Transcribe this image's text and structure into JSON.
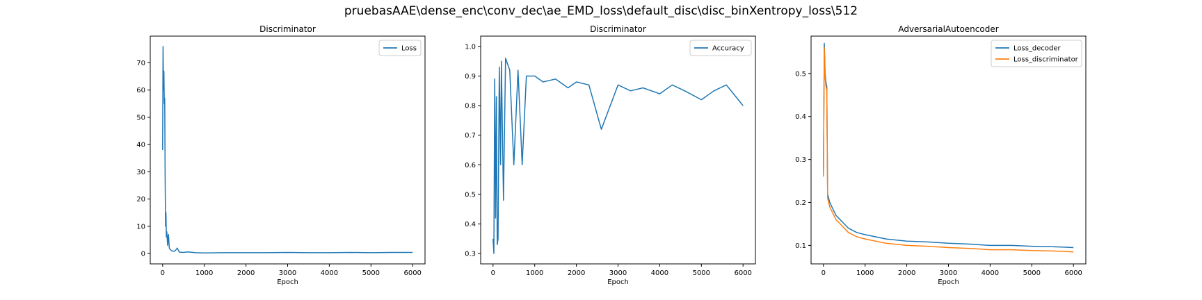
{
  "suptitle": "pruebasAAE\\dense_enc\\conv_dec\\ae_EMD_loss\\default_disc\\disc_binXentropy_loss\\512",
  "chart_data": [
    {
      "type": "line",
      "title": "Discriminator",
      "xlabel": "Epoch",
      "ylabel": "",
      "xlim": [
        -297,
        6297
      ],
      "ylim": [
        -3.8,
        79.8
      ],
      "xticks": [
        0,
        1000,
        2000,
        3000,
        4000,
        5000,
        6000
      ],
      "yticks": [
        0,
        10,
        20,
        30,
        40,
        50,
        60,
        70
      ],
      "legend_position": "top-right",
      "grid": false,
      "series": [
        {
          "name": "Loss",
          "color": "#1f77b4",
          "x": [
            0,
            10,
            20,
            30,
            40,
            50,
            60,
            70,
            80,
            90,
            100,
            120,
            140,
            160,
            180,
            200,
            250,
            300,
            350,
            400,
            500,
            600,
            800,
            1000,
            1500,
            2000,
            2500,
            3000,
            3500,
            4000,
            4500,
            5000,
            5500,
            6000
          ],
          "values": [
            38,
            76,
            60,
            67,
            55,
            57,
            28,
            10,
            15,
            6,
            8,
            3,
            7,
            2,
            1.5,
            1.2,
            0.8,
            1,
            2,
            0.5,
            0.4,
            0.6,
            0.3,
            0.2,
            0.3,
            0.3,
            0.3,
            0.4,
            0.3,
            0.3,
            0.4,
            0.3,
            0.4,
            0.4
          ]
        }
      ]
    },
    {
      "type": "line",
      "title": "Discriminator",
      "xlabel": "Epoch",
      "ylabel": "",
      "xlim": [
        -297,
        6297
      ],
      "ylim": [
        0.265,
        1.035
      ],
      "xticks": [
        0,
        1000,
        2000,
        3000,
        4000,
        5000,
        6000
      ],
      "yticks": [
        0.3,
        0.4,
        0.5,
        0.6,
        0.7,
        0.8,
        0.9,
        1.0
      ],
      "legend_position": "top-right",
      "grid": false,
      "series": [
        {
          "name": "Accuracy",
          "color": "#1f77b4",
          "x": [
            0,
            20,
            40,
            60,
            80,
            100,
            120,
            150,
            180,
            200,
            250,
            300,
            400,
            500,
            600,
            700,
            800,
            1000,
            1200,
            1500,
            1800,
            2000,
            2300,
            2600,
            3000,
            3300,
            3600,
            4000,
            4300,
            4600,
            5000,
            5300,
            5600,
            6000
          ],
          "values": [
            0.35,
            0.3,
            0.89,
            0.42,
            0.83,
            0.33,
            0.35,
            0.93,
            0.6,
            0.95,
            0.48,
            0.96,
            0.92,
            0.6,
            0.92,
            0.6,
            0.9,
            0.9,
            0.88,
            0.89,
            0.86,
            0.88,
            0.87,
            0.72,
            0.87,
            0.85,
            0.86,
            0.84,
            0.87,
            0.85,
            0.82,
            0.85,
            0.87,
            0.8
          ]
        }
      ]
    },
    {
      "type": "line",
      "title": "AdversarialAutoencoder",
      "xlabel": "Epoch",
      "ylabel": "",
      "xlim": [
        -297,
        6297
      ],
      "ylim": [
        0.057,
        0.587
      ],
      "xticks": [
        0,
        1000,
        2000,
        3000,
        4000,
        5000,
        6000
      ],
      "yticks": [
        0.1,
        0.2,
        0.3,
        0.4,
        0.5
      ],
      "legend_position": "top-right",
      "grid": false,
      "series": [
        {
          "name": "Loss_decoder",
          "color": "#1f77b4",
          "x": [
            0,
            20,
            40,
            60,
            80,
            100,
            150,
            200,
            300,
            400,
            500,
            600,
            800,
            1000,
            1500,
            2000,
            2500,
            3000,
            3500,
            4000,
            4500,
            5000,
            5500,
            6000
          ],
          "values": [
            0.27,
            0.57,
            0.5,
            0.48,
            0.47,
            0.22,
            0.2,
            0.19,
            0.17,
            0.16,
            0.15,
            0.14,
            0.13,
            0.125,
            0.115,
            0.11,
            0.108,
            0.105,
            0.103,
            0.1,
            0.1,
            0.098,
            0.097,
            0.095
          ]
        },
        {
          "name": "Loss_discriminator",
          "color": "#ff7f0e",
          "x": [
            0,
            20,
            40,
            60,
            80,
            100,
            150,
            200,
            300,
            400,
            500,
            600,
            800,
            1000,
            1500,
            2000,
            2500,
            3000,
            3500,
            4000,
            4500,
            5000,
            5500,
            6000
          ],
          "values": [
            0.26,
            0.56,
            0.49,
            0.47,
            0.46,
            0.21,
            0.19,
            0.18,
            0.16,
            0.15,
            0.14,
            0.13,
            0.12,
            0.115,
            0.105,
            0.1,
            0.098,
            0.095,
            0.093,
            0.09,
            0.09,
            0.088,
            0.087,
            0.085
          ]
        }
      ]
    }
  ]
}
